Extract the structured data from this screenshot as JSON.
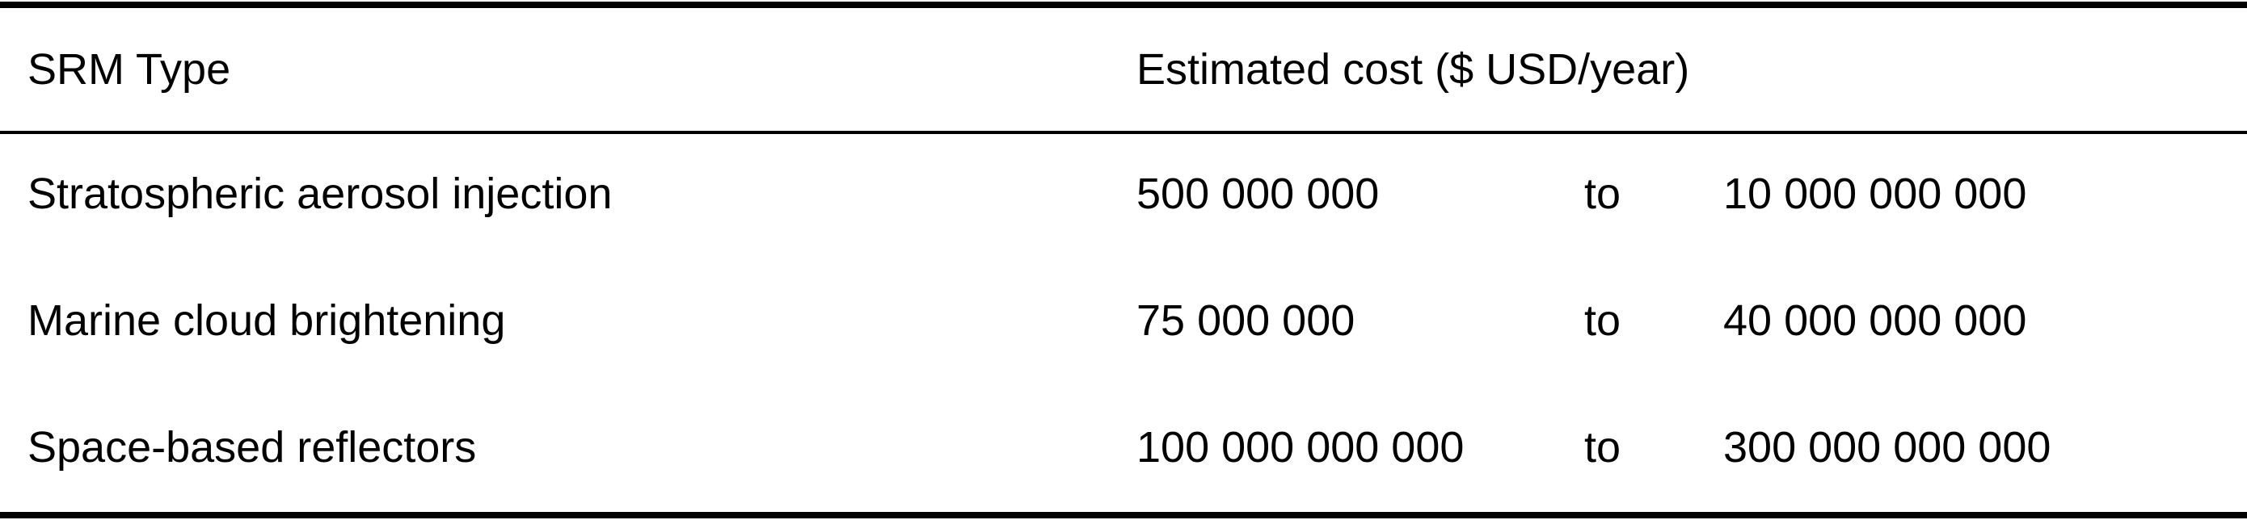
{
  "table": {
    "headers": {
      "type": "SRM Type",
      "cost": "Estimated cost ($ USD/year)"
    },
    "rows": [
      {
        "type": "Stratospheric aerosol injection",
        "lower": "500 000 000",
        "connector": "to",
        "upper": "10 000 000 000"
      },
      {
        "type": "Marine cloud brightening",
        "lower": "75 000 000",
        "connector": "to",
        "upper": "40 000 000 000"
      },
      {
        "type": "Space-based reflectors",
        "lower": "100 000 000 000",
        "connector": "to",
        "upper": "300 000 000 000"
      }
    ]
  }
}
